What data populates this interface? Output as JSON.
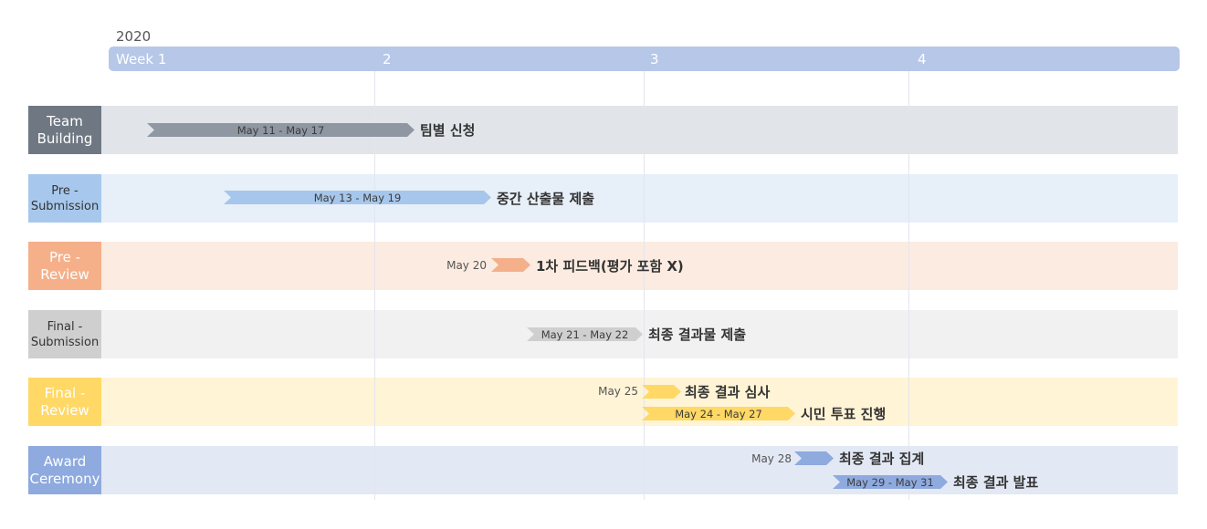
{
  "timeline": {
    "year": "2020",
    "weeks": [
      "Week 1",
      "2",
      "3",
      "4"
    ]
  },
  "rows": [
    {
      "label": "Team\nBuilding",
      "label_bg": "#6f7882",
      "label_color": "#ffffff",
      "bg": "#e1e4e8",
      "tasks": [
        {
          "range": "May 11 - May 17",
          "title": "팀별 신청",
          "color": "#8e97a2"
        }
      ]
    },
    {
      "label": "Pre -\nSubmission",
      "label_bg": "#a7c8ec",
      "label_color": "#333333",
      "bg": "#e7eff9",
      "tasks": [
        {
          "range": "May 13 - May 19",
          "title": "중간 산출물 제출",
          "color": "#a6c7eb"
        }
      ]
    },
    {
      "label": "Pre -\nReview",
      "label_bg": "#f5b08a",
      "label_color": "#ffffff",
      "bg": "#fbebe0",
      "tasks": [
        {
          "date": "May 20",
          "title": "1차 피드백(평가 포함 X)",
          "color": "#f4b08a"
        }
      ]
    },
    {
      "label": "Final -\nSubmission",
      "label_bg": "#cfcfcf",
      "label_color": "#333333",
      "bg": "#f1f1f1",
      "tasks": [
        {
          "range": "May 21 - May 22",
          "title": "최종 결과물 제출",
          "color": "#cfcfcf"
        }
      ]
    },
    {
      "label": "Final -\nReview",
      "label_bg": "#ffd866",
      "label_color": "#ffffff",
      "bg": "#fff4d6",
      "tasks": [
        {
          "date": "May 25",
          "title": "최종 결과 심사",
          "color": "#ffd866"
        },
        {
          "range": "May 24 - May 27",
          "title": "시민 투표 진행",
          "color": "#ffd866"
        }
      ]
    },
    {
      "label": "Award\nCeremony",
      "label_bg": "#8eaade",
      "label_color": "#ffffff",
      "bg": "#e2e8f4",
      "tasks": [
        {
          "date": "May 28",
          "title": "최종 결과 집계",
          "color": "#8eaade"
        },
        {
          "range": "May 29 - May 31",
          "title": "최종 결과 발표",
          "color": "#8eaade"
        }
      ]
    }
  ]
}
